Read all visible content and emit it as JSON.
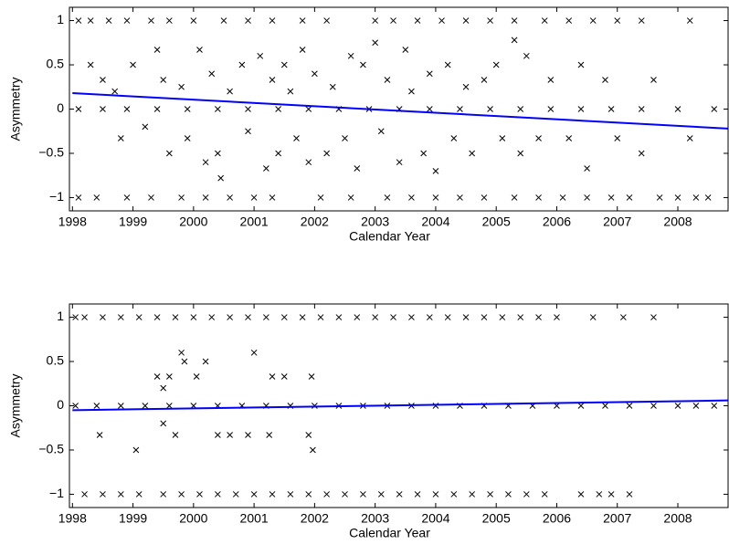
{
  "chart_data": [
    {
      "type": "scatter",
      "xlabel": "Calendar Year",
      "ylabel": "Asymmetry",
      "xlim": [
        1997.95,
        2008.83
      ],
      "ylim": [
        -1.15,
        1.15
      ],
      "xticks": [
        1998,
        1999,
        2000,
        2001,
        2002,
        2003,
        2004,
        2005,
        2006,
        2007,
        2008
      ],
      "yticks": [
        {
          "value": -1,
          "label": "−1"
        },
        {
          "value": -0.5,
          "label": "−0.5"
        },
        0,
        0.5,
        1
      ],
      "series": [
        {
          "type": "scatter",
          "color": "#000000",
          "x": [
            1998.1,
            1998.3,
            1998.6,
            1998.9,
            1999.3,
            1999.6,
            2000.0,
            2000.5,
            2000.9,
            2001.3,
            2001.8,
            2002.2,
            2003.0,
            2003.3,
            2003.7,
            2004.1,
            2004.5,
            2004.9,
            2005.3,
            2005.8,
            2006.2,
            2006.6,
            2007.0,
            2007.4,
            2008.2,
            1998.1,
            1998.4,
            1998.9,
            1999.3,
            1999.8,
            2000.2,
            2000.6,
            2001.0,
            2001.3,
            2002.1,
            2002.6,
            2003.2,
            2003.6,
            2004.0,
            2004.4,
            2004.8,
            2005.3,
            2005.7,
            2006.1,
            2006.5,
            2006.9,
            2007.2,
            2007.7,
            2008.0,
            2008.3,
            2008.5,
            1998.1,
            1998.5,
            1998.9,
            1999.4,
            1999.9,
            2000.4,
            2000.9,
            2001.4,
            2001.9,
            2002.4,
            2002.9,
            2003.4,
            2003.9,
            2004.4,
            2004.9,
            2005.4,
            2005.9,
            2006.4,
            2006.9,
            2007.4,
            2008.0,
            2008.6,
            1998.3,
            1998.5,
            1998.7,
            1998.8,
            1999.0,
            1999.2,
            1999.4,
            1999.5,
            1999.6,
            1999.8,
            1999.9,
            2000.1,
            2000.2,
            2000.3,
            2000.4,
            2000.45,
            2000.6,
            2000.8,
            2000.9,
            2001.1,
            2001.2,
            2001.3,
            2001.4,
            2001.5,
            2001.6,
            2001.7,
            2001.8,
            2001.9,
            2002.0,
            2002.2,
            2002.3,
            2002.5,
            2002.6,
            2002.7,
            2002.8,
            2003.0,
            2003.1,
            2003.2,
            2003.4,
            2003.5,
            2003.6,
            2003.8,
            2003.9,
            2004.0,
            2004.2,
            2004.3,
            2004.5,
            2004.6,
            2004.8,
            2005.0,
            2005.1,
            2005.3,
            2005.4,
            2005.5,
            2005.7,
            2005.9,
            2006.2,
            2006.4,
            2006.5,
            2007.0,
            2007.4,
            2008.2,
            2007.6,
            2006.8
          ],
          "values": [
            1,
            1,
            1,
            1,
            1,
            1,
            1,
            1,
            1,
            1,
            1,
            1,
            1,
            1,
            1,
            1,
            1,
            1,
            1,
            1,
            1,
            1,
            1,
            1,
            1,
            -1,
            -1,
            -1,
            -1,
            -1,
            -1,
            -1,
            -1,
            -1,
            -1,
            -1,
            -1,
            -1,
            -1,
            -1,
            -1,
            -1,
            -1,
            -1,
            -1,
            -1,
            -1,
            -1,
            -1,
            -1,
            -1,
            0,
            0,
            0,
            0,
            0,
            0,
            0,
            0,
            0,
            0,
            0,
            0,
            0,
            0,
            0,
            0,
            0,
            0,
            0,
            0,
            0,
            0,
            0.5,
            0.33,
            0.2,
            -0.33,
            0.5,
            -0.2,
            0.67,
            0.33,
            -0.5,
            0.25,
            -0.33,
            0.67,
            -0.6,
            0.4,
            -0.5,
            -0.78,
            0.2,
            0.5,
            -0.25,
            0.6,
            -0.67,
            0.33,
            -0.5,
            0.5,
            0.2,
            -0.33,
            0.67,
            -0.6,
            0.4,
            -0.5,
            0.25,
            -0.33,
            0.6,
            -0.67,
            0.5,
            0.75,
            -0.25,
            0.33,
            -0.6,
            0.67,
            0.2,
            -0.5,
            0.4,
            -0.7,
            0.5,
            -0.33,
            0.25,
            -0.5,
            0.33,
            0.5,
            -0.33,
            0.78,
            -0.5,
            0.6,
            -0.33,
            0.33,
            -0.33,
            0.5,
            -0.67,
            -0.33,
            -0.5,
            -0.33,
            0.33,
            0.33
          ]
        },
        {
          "type": "line",
          "color": "#0000ff",
          "x": [
            1998,
            2008.83
          ],
          "values": [
            0.18,
            -0.22
          ]
        }
      ]
    },
    {
      "type": "scatter",
      "xlabel": "Calendar Year",
      "ylabel": "Asymmetry",
      "xlim": [
        1997.95,
        2008.83
      ],
      "ylim": [
        -1.15,
        1.15
      ],
      "xticks": [
        1998,
        1999,
        2000,
        2001,
        2002,
        2003,
        2004,
        2005,
        2006,
        2007,
        2008
      ],
      "yticks": [
        {
          "value": -1,
          "label": "−1"
        },
        {
          "value": -0.5,
          "label": "−0.5"
        },
        0,
        0.5,
        1
      ],
      "series": [
        {
          "type": "scatter",
          "color": "#000000",
          "x": [
            1998.05,
            1998.2,
            1998.5,
            1998.8,
            1999.1,
            1999.4,
            1999.7,
            2000.0,
            2000.3,
            2000.6,
            2000.9,
            2001.2,
            2001.5,
            2001.8,
            2002.1,
            2002.4,
            2002.7,
            2003.0,
            2003.3,
            2003.6,
            2003.9,
            2004.2,
            2004.5,
            2004.8,
            2005.1,
            2005.4,
            2005.7,
            2006.0,
            2006.6,
            2007.1,
            2007.6,
            1998.2,
            1998.5,
            1998.8,
            1999.1,
            1999.5,
            1999.8,
            2000.1,
            2000.4,
            2000.7,
            2001.0,
            2001.3,
            2001.6,
            2001.9,
            2002.2,
            2002.5,
            2002.8,
            2003.1,
            2003.4,
            2003.7,
            2004.0,
            2004.3,
            2004.6,
            2004.9,
            2005.2,
            2005.5,
            2005.8,
            2006.4,
            2006.7,
            2006.9,
            2007.2,
            1998.05,
            1998.4,
            1998.8,
            1999.2,
            1999.6,
            2000.0,
            2000.4,
            2000.8,
            2001.2,
            2001.6,
            2002.0,
            2002.4,
            2002.8,
            2003.2,
            2003.6,
            2004.0,
            2004.4,
            2004.8,
            2005.2,
            2005.6,
            2006.0,
            2006.4,
            2006.8,
            2007.2,
            2007.6,
            2008.0,
            2008.3,
            2008.6,
            1999.4,
            1999.6,
            1999.5,
            1999.8,
            1999.85,
            1999.7,
            1999.5,
            2001.0,
            2001.3,
            2001.5,
            2001.95,
            2001.97,
            2001.9,
            1998.45,
            1999.05,
            2000.4,
            2000.6,
            2000.9,
            2001.25,
            2000.2,
            2000.05
          ],
          "values": [
            1,
            1,
            1,
            1,
            1,
            1,
            1,
            1,
            1,
            1,
            1,
            1,
            1,
            1,
            1,
            1,
            1,
            1,
            1,
            1,
            1,
            1,
            1,
            1,
            1,
            1,
            1,
            1,
            1,
            1,
            1,
            -1,
            -1,
            -1,
            -1,
            -1,
            -1,
            -1,
            -1,
            -1,
            -1,
            -1,
            -1,
            -1,
            -1,
            -1,
            -1,
            -1,
            -1,
            -1,
            -1,
            -1,
            -1,
            -1,
            -1,
            -1,
            -1,
            -1,
            -1,
            -1,
            -1,
            0,
            0,
            0,
            0,
            0,
            0,
            0,
            0,
            0,
            0,
            0,
            0,
            0,
            0,
            0,
            0,
            0,
            0,
            0,
            0,
            0,
            0,
            0,
            0,
            0,
            0,
            0,
            0,
            0.33,
            0.33,
            0.2,
            0.6,
            0.5,
            -0.33,
            -0.2,
            0.6,
            0.33,
            0.33,
            0.33,
            -0.5,
            -0.33,
            -0.33,
            -0.5,
            -0.33,
            -0.33,
            -0.33,
            -0.33,
            0.5,
            0.33
          ]
        },
        {
          "type": "line",
          "color": "#0000ff",
          "x": [
            1998,
            2008.83
          ],
          "values": [
            -0.05,
            0.06
          ]
        }
      ]
    }
  ]
}
